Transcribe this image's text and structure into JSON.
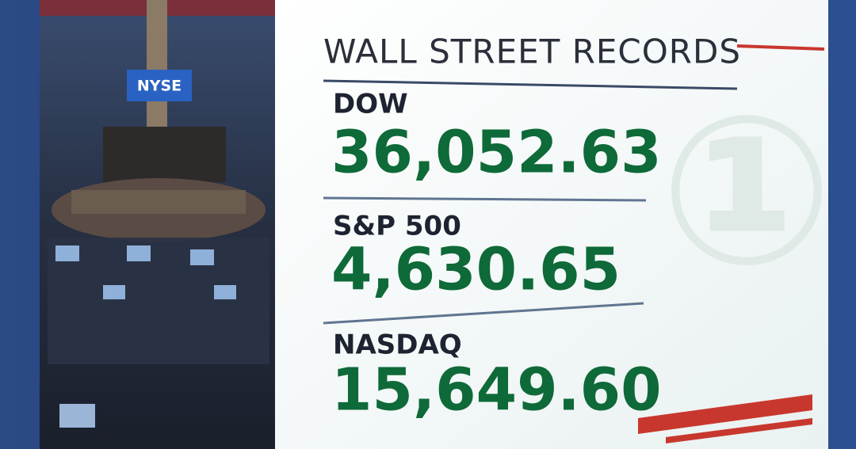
{
  "header": {
    "title": "WALL STREET RECORDS"
  },
  "background": {
    "sign": "NYSE"
  },
  "indices": [
    {
      "label": "DOW",
      "value": "36,052.63"
    },
    {
      "label": "S&P 500",
      "value": "4,630.65"
    },
    {
      "label": "NASDAQ",
      "value": "15,649.60"
    }
  ]
}
